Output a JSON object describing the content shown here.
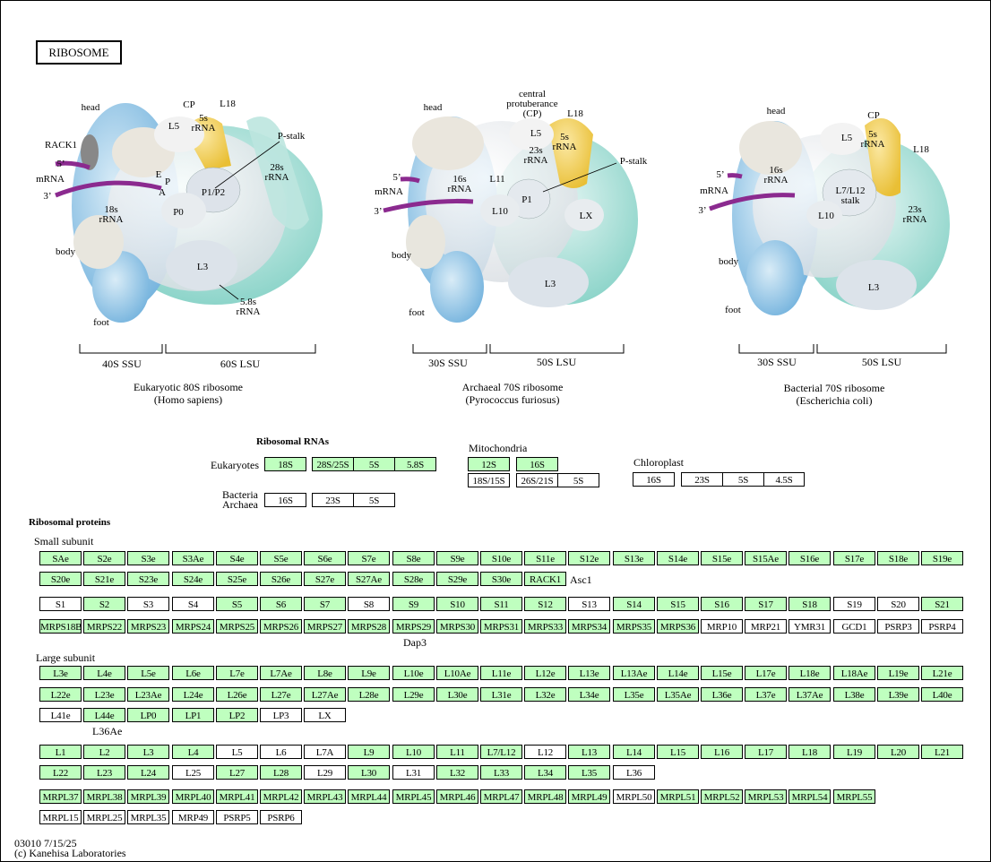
{
  "title": "RIBOSOME",
  "colors": {
    "present": "#bfffbf",
    "absent": "#ffffff",
    "mrna": "#8b2a8f",
    "rrna_yellow": "#f3cf50",
    "ssu_blue": "#8cbfe0",
    "lsu_teal": "#7fd0c4"
  },
  "ribosomes": [
    {
      "name": "Eukaryotic 80S ribosome",
      "species": "(Homo sapiens)",
      "ssu": "40S SSU",
      "lsu": "60S LSU",
      "labels": {
        "head": "head",
        "cp": "CP",
        "l18": "L18",
        "l5": "L5",
        "rrna5s": "5s\nrRNA",
        "pstalk": "P-stalk",
        "rack1": "RACK1",
        "m5": "5’",
        "mrna": "mRNA",
        "m3": "3’",
        "e": "E",
        "p": "P",
        "a": "A",
        "p1p2": "P1/P2",
        "p0": "P0",
        "r28s": "28s\nrRNA",
        "r18s": "18s\nrRNA",
        "body": "body",
        "l3": "L3",
        "foot": "foot",
        "r58s": "5.8s\nrRNA"
      }
    },
    {
      "name": "Archaeal 70S ribosome",
      "species": "(Pyrococcus furiosus)",
      "ssu": "30S SSU",
      "lsu": "50S LSU",
      "labels": {
        "head": "head",
        "cp": "central\nprotuberance\n(CP)",
        "l18": "L18",
        "l5": "L5",
        "rrna5s": "5s\nrRNA",
        "r23s": "23s\nrRNA",
        "pstalk": "P-stalk",
        "m5": "5’",
        "mrna": "mRNA",
        "m3": "3’",
        "r16s": "16s\nrRNA",
        "l11": "L11",
        "p1": "P1",
        "l10": "L10",
        "lx": "LX",
        "body": "body",
        "l3": "L3",
        "foot": "foot"
      }
    },
    {
      "name": "Bacterial 70S ribosome",
      "species": "(Escherichia coli)",
      "ssu": "30S SSU",
      "lsu": "50S LSU",
      "labels": {
        "head": "head",
        "cp": "CP",
        "l5": "L5",
        "rrna5s": "5s\nrRNA",
        "l18": "L18",
        "m5": "5’",
        "mrna": "mRNA",
        "m3": "3’",
        "r16s": "16s\nrRNA",
        "l7l12": "L7/L12\nstalk",
        "l10": "L10",
        "r23s": "23s\nrRNA",
        "body": "body",
        "l3": "L3",
        "foot": "foot"
      }
    }
  ],
  "ribosomal_rnas": {
    "heading": "Ribosomal RNAs",
    "eukaryotes_label": "Eukaryotes",
    "bacteria_label": "Bacteria",
    "archaea_label": "Archaea",
    "mitochondria_label": "Mitochondria",
    "chloroplast_label": "Chloroplast",
    "eukaryotes": [
      {
        "label": "18S",
        "on": true
      },
      {
        "label": "28S/25S",
        "on": true
      },
      {
        "label": "5S",
        "on": true
      },
      {
        "label": "5.8S",
        "on": true
      }
    ],
    "bacteria_archaea": [
      {
        "label": "16S",
        "on": false
      },
      {
        "label": "23S",
        "on": false
      },
      {
        "label": "5S",
        "on": false
      }
    ],
    "mitochondria_top": [
      {
        "label": "12S",
        "on": true
      },
      {
        "label": "16S",
        "on": true
      }
    ],
    "mitochondria_bottom": [
      {
        "label": "18S/15S",
        "on": false
      },
      {
        "label": "26S/21S",
        "on": false
      },
      {
        "label": "5S",
        "on": false
      }
    ],
    "chloroplast": [
      {
        "label": "16S",
        "on": false
      },
      {
        "label": "23S",
        "on": false
      },
      {
        "label": "5S",
        "on": false
      },
      {
        "label": "4.5S",
        "on": false
      }
    ]
  },
  "ribosomal_proteins": {
    "heading": "Ribosomal proteins",
    "small_subunit_label": "Small subunit",
    "large_subunit_label": "Large subunit",
    "asc1_label": "Asc1",
    "dap3_label": "Dap3",
    "l36ae_label": "L36Ae",
    "ss_row1": [
      "SAe",
      "S2e",
      "S3e",
      "S3Ae",
      "S4e",
      "S5e",
      "S6e",
      "S7e",
      "S8e",
      "S9e",
      "S10e",
      "S11e",
      "S12e",
      "S13e",
      "S14e",
      "S15e",
      "S15Ae",
      "S16e",
      "S17e",
      "S18e",
      "S19e"
    ],
    "ss_row2": [
      "S20e",
      "S21e",
      "S23e",
      "S24e",
      "S25e",
      "S26e",
      "S27e",
      "S27Ae",
      "S28e",
      "S29e",
      "S30e",
      "RACK1"
    ],
    "ss_row3": [
      {
        "l": "S1",
        "on": false
      },
      {
        "l": "S2",
        "on": true
      },
      {
        "l": "S3",
        "on": false
      },
      {
        "l": "S4",
        "on": false
      },
      {
        "l": "S5",
        "on": true
      },
      {
        "l": "S6",
        "on": true
      },
      {
        "l": "S7",
        "on": true
      },
      {
        "l": "S8",
        "on": false
      },
      {
        "l": "S9",
        "on": true
      },
      {
        "l": "S10",
        "on": true
      },
      {
        "l": "S11",
        "on": true
      },
      {
        "l": "S12",
        "on": true
      },
      {
        "l": "S13",
        "on": false
      },
      {
        "l": "S14",
        "on": true
      },
      {
        "l": "S15",
        "on": true
      },
      {
        "l": "S16",
        "on": true
      },
      {
        "l": "S17",
        "on": true
      },
      {
        "l": "S18",
        "on": true
      },
      {
        "l": "S19",
        "on": false
      },
      {
        "l": "S20",
        "on": false
      },
      {
        "l": "S21",
        "on": true
      }
    ],
    "ss_row4": [
      {
        "l": "MRPS18B",
        "on": true
      },
      {
        "l": "MRPS22",
        "on": true
      },
      {
        "l": "MRPS23",
        "on": true
      },
      {
        "l": "MRPS24",
        "on": true
      },
      {
        "l": "MRPS25",
        "on": true
      },
      {
        "l": "MRPS26",
        "on": true
      },
      {
        "l": "MRPS27",
        "on": true
      },
      {
        "l": "MRPS28",
        "on": true
      },
      {
        "l": "MRPS29",
        "on": true
      },
      {
        "l": "MRPS30",
        "on": true
      },
      {
        "l": "MRPS31",
        "on": true
      },
      {
        "l": "MRPS33",
        "on": true
      },
      {
        "l": "MRPS34",
        "on": true
      },
      {
        "l": "MRPS35",
        "on": true
      },
      {
        "l": "MRPS36",
        "on": true
      },
      {
        "l": "MRP10",
        "on": false
      },
      {
        "l": "MRP21",
        "on": false
      },
      {
        "l": "YMR31",
        "on": false
      },
      {
        "l": "GCD1",
        "on": false
      },
      {
        "l": "PSRP3",
        "on": false
      },
      {
        "l": "PSRP4",
        "on": false
      }
    ],
    "ls_row1": [
      "L3e",
      "L4e",
      "L5e",
      "L6e",
      "L7e",
      "L7Ae",
      "L8e",
      "L9e",
      "L10e",
      "L10Ae",
      "L11e",
      "L12e",
      "L13e",
      "L13Ae",
      "L14e",
      "L15e",
      "L17e",
      "L18e",
      "L18Ae",
      "L19e",
      "L21e"
    ],
    "ls_row2": [
      "L22e",
      "L23e",
      "L23Ae",
      "L24e",
      "L26e",
      "L27e",
      "L27Ae",
      "L28e",
      "L29e",
      "L30e",
      "L31e",
      "L32e",
      "L34e",
      "L35e",
      "L35Ae",
      "L36e",
      "L37e",
      "L37Ae",
      "L38e",
      "L39e",
      "L40e"
    ],
    "ls_row3": [
      {
        "l": "L41e",
        "on": false
      },
      {
        "l": "L44e",
        "on": true
      },
      {
        "l": "LP0",
        "on": true
      },
      {
        "l": "LP1",
        "on": true
      },
      {
        "l": "LP2",
        "on": true
      },
      {
        "l": "LP3",
        "on": false
      },
      {
        "l": "LX",
        "on": false
      }
    ],
    "ls_row4": [
      {
        "l": "L1",
        "on": true
      },
      {
        "l": "L2",
        "on": true
      },
      {
        "l": "L3",
        "on": true
      },
      {
        "l": "L4",
        "on": true
      },
      {
        "l": "L5",
        "on": false
      },
      {
        "l": "L6",
        "on": false
      },
      {
        "l": "L7A",
        "on": false
      },
      {
        "l": "L9",
        "on": true
      },
      {
        "l": "L10",
        "on": true
      },
      {
        "l": "L11",
        "on": true
      },
      {
        "l": "L7/L12",
        "on": true
      },
      {
        "l": "L12",
        "on": false
      },
      {
        "l": "L13",
        "on": true
      },
      {
        "l": "L14",
        "on": true
      },
      {
        "l": "L15",
        "on": true
      },
      {
        "l": "L16",
        "on": true
      },
      {
        "l": "L17",
        "on": true
      },
      {
        "l": "L18",
        "on": true
      },
      {
        "l": "L19",
        "on": true
      },
      {
        "l": "L20",
        "on": true
      },
      {
        "l": "L21",
        "on": true
      }
    ],
    "ls_row5": [
      {
        "l": "L22",
        "on": true
      },
      {
        "l": "L23",
        "on": true
      },
      {
        "l": "L24",
        "on": true
      },
      {
        "l": "L25",
        "on": false
      },
      {
        "l": "L27",
        "on": true
      },
      {
        "l": "L28",
        "on": true
      },
      {
        "l": "L29",
        "on": false
      },
      {
        "l": "L30",
        "on": true
      },
      {
        "l": "L31",
        "on": false
      },
      {
        "l": "L32",
        "on": true
      },
      {
        "l": "L33",
        "on": true
      },
      {
        "l": "L34",
        "on": true
      },
      {
        "l": "L35",
        "on": true
      },
      {
        "l": "L36",
        "on": false
      }
    ],
    "ls_row6": [
      {
        "l": "MRPL37",
        "on": true
      },
      {
        "l": "MRPL38",
        "on": true
      },
      {
        "l": "MRPL39",
        "on": true
      },
      {
        "l": "MRPL40",
        "on": true
      },
      {
        "l": "MRPL41",
        "on": true
      },
      {
        "l": "MRPL42",
        "on": true
      },
      {
        "l": "MRPL43",
        "on": true
      },
      {
        "l": "MRPL44",
        "on": true
      },
      {
        "l": "MRPL45",
        "on": true
      },
      {
        "l": "MRPL46",
        "on": true
      },
      {
        "l": "MRPL47",
        "on": true
      },
      {
        "l": "MRPL48",
        "on": true
      },
      {
        "l": "MRPL49",
        "on": true
      },
      {
        "l": "MRPL50",
        "on": false
      },
      {
        "l": "MRPL51",
        "on": true
      },
      {
        "l": "MRPL52",
        "on": true
      },
      {
        "l": "MRPL53",
        "on": true
      },
      {
        "l": "MRPL54",
        "on": true
      },
      {
        "l": "MRPL55",
        "on": true
      }
    ],
    "ls_row7": [
      {
        "l": "MRPL15",
        "on": false
      },
      {
        "l": "MRPL25",
        "on": false
      },
      {
        "l": "MRPL35",
        "on": false
      },
      {
        "l": "MRP49",
        "on": false
      },
      {
        "l": "PSRP5",
        "on": false
      },
      {
        "l": "PSRP6",
        "on": false
      }
    ]
  },
  "footer": {
    "map_id": "03010 7/15/25",
    "copyright": "(c) Kanehisa Laboratories"
  }
}
